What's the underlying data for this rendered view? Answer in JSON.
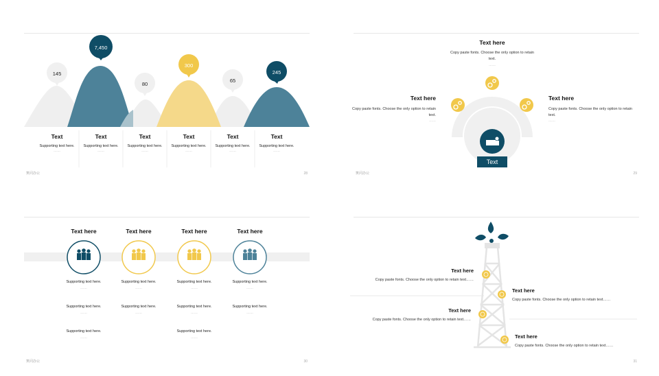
{
  "colors": {
    "blue": "#4d8299",
    "dark_blue": "#0f4d66",
    "yellow": "#f1c84b",
    "light_yellow": "#f5d88a",
    "grey": "#f0f0f0"
  },
  "slide1": {
    "page_number": "28",
    "footer": "笑问办公",
    "bubbles": [
      "145",
      "7,450",
      "80",
      "300",
      "65",
      "245"
    ],
    "columns": [
      {
        "title": "Text",
        "support": "Supporting text here.",
        "dots": "……"
      },
      {
        "title": "Text",
        "support": "Supporting text here.",
        "dots": "……"
      },
      {
        "title": "Text",
        "support": "Supporting text here.",
        "dots": "……"
      },
      {
        "title": "Text",
        "support": "Supporting text here.",
        "dots": "……"
      },
      {
        "title": "Text",
        "support": "Supporting text here.",
        "dots": "……"
      },
      {
        "title": "Text",
        "support": "Supporting text here.",
        "dots": "……"
      }
    ]
  },
  "slide2": {
    "page_number": "29",
    "footer": "笑问办公",
    "top": {
      "title": "Text here",
      "body": "Copy paste fonts. Choose the only option to retain text.",
      "dots": "……"
    },
    "left": {
      "title": "Text here",
      "body": "Copy paste fonts. Choose the only option to retain text.",
      "dots": "……"
    },
    "right": {
      "title": "Text here",
      "body": "Copy paste fonts. Choose the only option to retain text.",
      "dots": "……"
    },
    "center_label": "Text"
  },
  "slide3": {
    "page_number": "30",
    "footer": "笑问办公",
    "columns": [
      {
        "title": "Text here",
        "rows": [
          "Supporting text here.",
          "Supporting text here.",
          "Supporting text here."
        ]
      },
      {
        "title": "Text here",
        "rows": [
          "Supporting text here.",
          "Supporting text here."
        ]
      },
      {
        "title": "Text here",
        "rows": [
          "Supporting text here.",
          "Supporting text here.",
          "Supporting text here."
        ]
      },
      {
        "title": "Text here",
        "rows": [
          "Supporting text here.",
          "Supporting text here."
        ]
      }
    ],
    "dots": "……"
  },
  "slide4": {
    "page_number": "31",
    "items": [
      {
        "title": "Text here",
        "body": "Copy paste fonts. Choose the only option to retain text……"
      },
      {
        "title": "Text here",
        "body": "Copy paste fonts. Choose the only option to retain text……"
      },
      {
        "title": "Text here",
        "body": "Copy paste fonts. Choose the only option to retain text……"
      },
      {
        "title": "Text here",
        "body": "Copy paste fonts. Choose the only option to retain text……"
      }
    ]
  }
}
